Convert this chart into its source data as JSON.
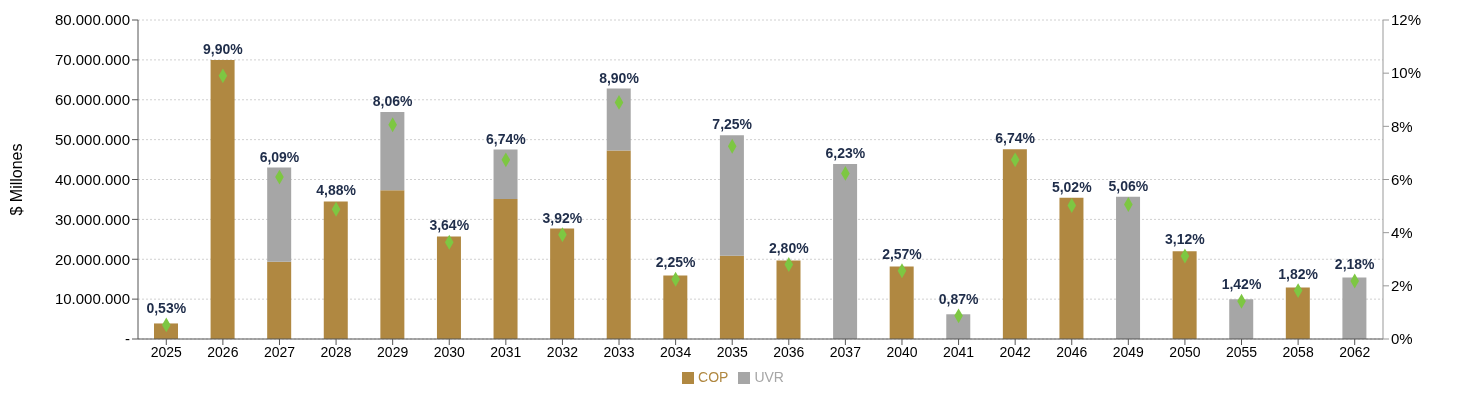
{
  "chart_data": {
    "type": "bar",
    "ylabel": "$ Millones",
    "categories": [
      "2025",
      "2026",
      "2027",
      "2028",
      "2029",
      "2030",
      "2031",
      "2032",
      "2033",
      "2034",
      "2035",
      "2036",
      "2037",
      "2040",
      "2041",
      "2042",
      "2046",
      "2049",
      "2050",
      "2055",
      "2058",
      "2062"
    ],
    "stacked": true,
    "legend": "bottom",
    "grid": "y",
    "ylim": [
      0,
      80000000
    ],
    "yticks": [
      {
        "value": 0,
        "label": "-"
      },
      {
        "value": 10000000,
        "label": "10.000.000"
      },
      {
        "value": 20000000,
        "label": "20.000.000"
      },
      {
        "value": 30000000,
        "label": "30.000.000"
      },
      {
        "value": 40000000,
        "label": "40.000.000"
      },
      {
        "value": 50000000,
        "label": "50.000.000"
      },
      {
        "value": 60000000,
        "label": "60.000.000"
      },
      {
        "value": 70000000,
        "label": "70.000.000"
      },
      {
        "value": 80000000,
        "label": "80.000.000"
      }
    ],
    "y2lim": [
      0,
      12
    ],
    "y2ticks": [
      {
        "value": 0,
        "label": "0%"
      },
      {
        "value": 2,
        "label": "2%"
      },
      {
        "value": 4,
        "label": "4%"
      },
      {
        "value": 6,
        "label": "6%"
      },
      {
        "value": 8,
        "label": "8%"
      },
      {
        "value": 10,
        "label": "10%"
      },
      {
        "value": 12,
        "label": "12%"
      }
    ],
    "series": [
      {
        "name": "COP",
        "color": "#b08841",
        "values": [
          3900000,
          70000000,
          19400000,
          34500000,
          37300000,
          25700000,
          35100000,
          27700000,
          47300000,
          15900000,
          20900000,
          19700000,
          null,
          18200000,
          null,
          47600000,
          35400000,
          null,
          22000000,
          null,
          12900000,
          null
        ]
      },
      {
        "name": "UVR",
        "color": "#a6a6a6",
        "values": [
          null,
          null,
          23600000,
          null,
          19600000,
          null,
          12400000,
          null,
          15500000,
          null,
          30200000,
          null,
          43900000,
          null,
          6200000,
          null,
          null,
          35700000,
          null,
          10000000,
          null,
          15400000
        ]
      },
      {
        "type": "scatter",
        "axis": "y2",
        "marker": "diamond",
        "color": "#7dc742",
        "values": [
          0.53,
          9.9,
          6.09,
          4.88,
          8.06,
          3.64,
          6.74,
          3.92,
          8.9,
          2.25,
          7.25,
          2.8,
          6.23,
          2.57,
          0.87,
          6.74,
          5.02,
          5.06,
          3.12,
          1.42,
          1.82,
          2.18
        ],
        "value_labels": [
          "0,53%",
          "9,90%",
          "6,09%",
          "4,88%",
          "8,06%",
          "3,64%",
          "6,74%",
          "3,92%",
          "8,90%",
          "2,25%",
          "7,25%",
          "2,80%",
          "6,23%",
          "2,57%",
          "0,87%",
          "6,74%",
          "5,02%",
          "5,06%",
          "3,12%",
          "1,42%",
          "1,82%",
          "2,18%"
        ]
      }
    ]
  }
}
